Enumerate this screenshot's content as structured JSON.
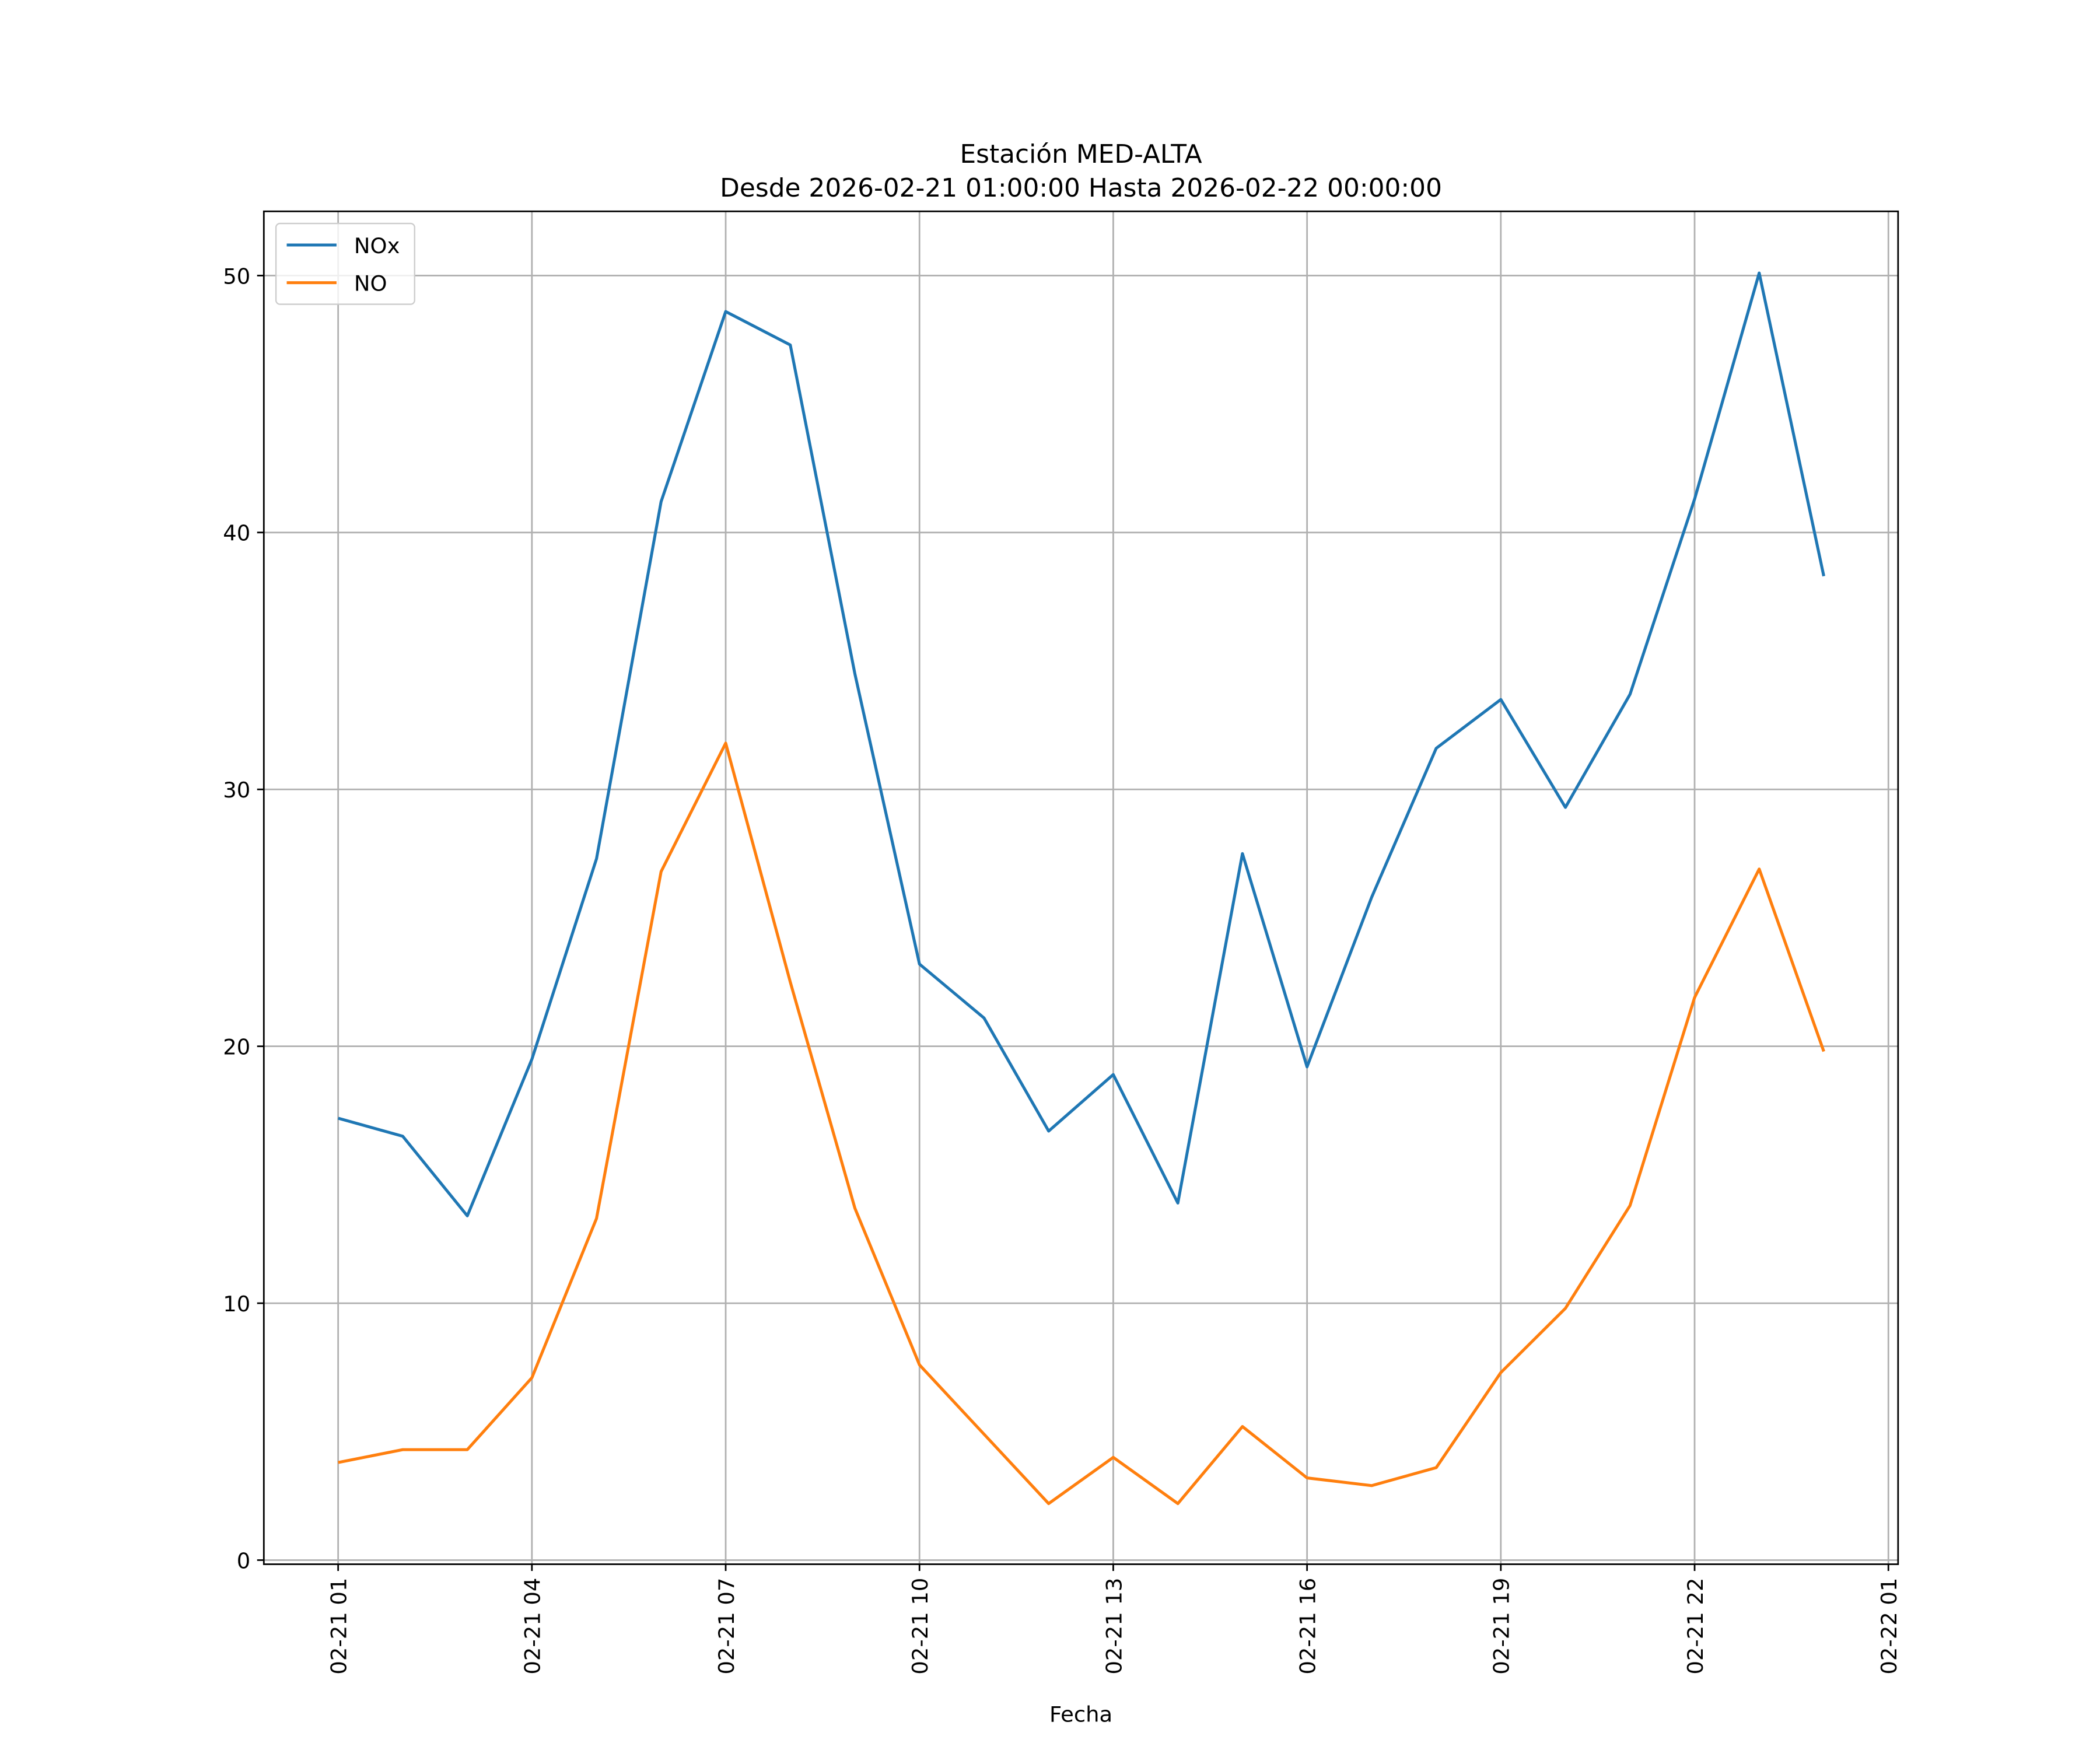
{
  "chart_data": {
    "type": "line",
    "title": "Estación MED-ALTA",
    "subtitle": "Desde 2026-02-21 01:00:00 Hasta 2026-02-22 00:00:00",
    "x_label": "Fecha",
    "x": [
      "02-21 01",
      "02-21 02",
      "02-21 03",
      "02-21 04",
      "02-21 05",
      "02-21 06",
      "02-21 07",
      "02-21 08",
      "02-21 09",
      "02-21 10",
      "02-21 11",
      "02-21 12",
      "02-21 13",
      "02-21 14",
      "02-21 15",
      "02-21 16",
      "02-21 17",
      "02-21 18",
      "02-21 19",
      "02-21 20",
      "02-21 21",
      "02-21 22",
      "02-21 23",
      "02-22 00"
    ],
    "series": [
      {
        "name": "NOx",
        "color": "#1f77b4",
        "values": [
          17.2,
          16.5,
          13.4,
          19.5,
          27.3,
          41.2,
          48.6,
          47.3,
          34.5,
          23.2,
          21.1,
          16.7,
          18.9,
          13.9,
          27.5,
          19.2,
          25.8,
          31.6,
          33.5,
          29.3,
          33.7,
          41.3,
          50.1,
          38.3
        ]
      },
      {
        "name": "NO",
        "color": "#ff7f0e",
        "values": [
          3.8,
          4.3,
          4.3,
          7.1,
          13.3,
          26.8,
          31.8,
          22.5,
          13.7,
          7.6,
          4.9,
          2.2,
          4.0,
          2.2,
          5.2,
          3.2,
          2.9,
          3.6,
          7.3,
          9.8,
          13.8,
          21.9,
          26.9,
          19.8
        ]
      }
    ],
    "xlim": [
      "02-20 23:51",
      "02-22 01:09"
    ],
    "xticks": [
      "02-21 01",
      "02-21 04",
      "02-21 07",
      "02-21 10",
      "02-21 13",
      "02-21 16",
      "02-21 19",
      "02-21 22",
      "02-22 01"
    ],
    "ylim": [
      -0.16,
      52.5
    ],
    "yticks": [
      0,
      10,
      20,
      30,
      40,
      50
    ],
    "grid": true,
    "legend": "upper left"
  }
}
